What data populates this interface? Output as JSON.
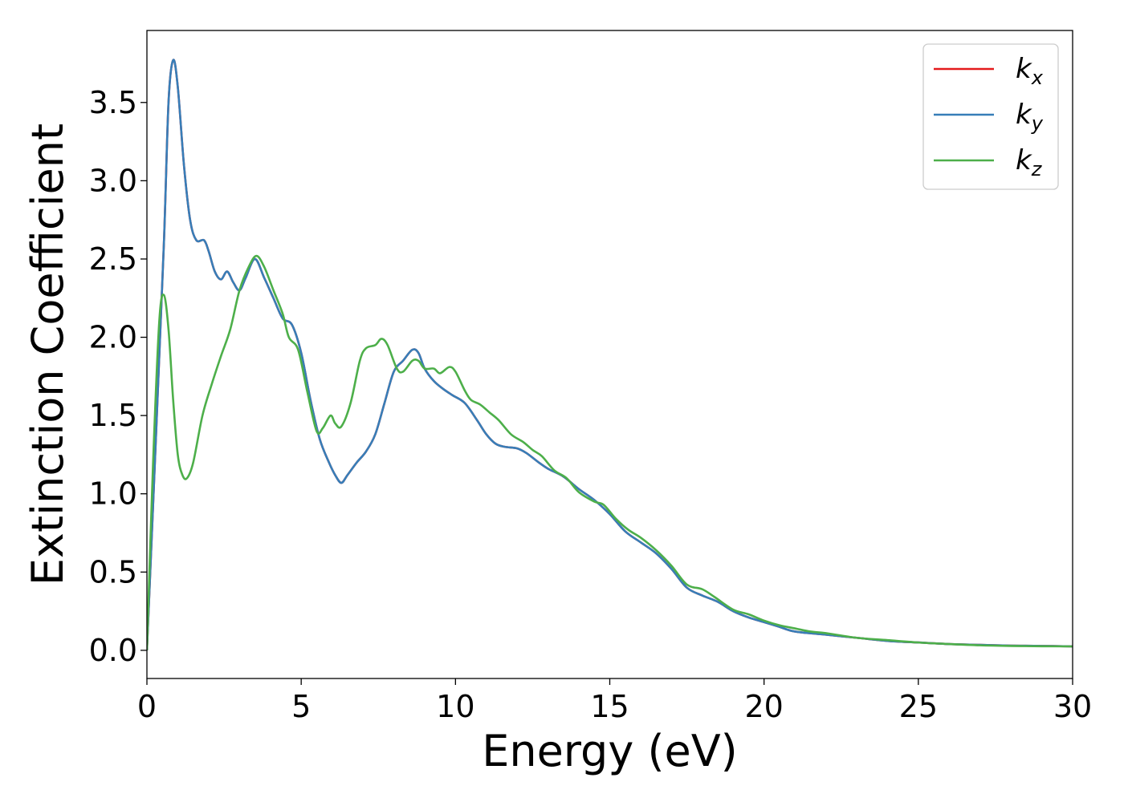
{
  "chart_data": {
    "type": "line",
    "xlabel": "Energy (eV)",
    "ylabel": "Extinction Coefficient",
    "xlim": [
      0,
      30
    ],
    "ylim": [
      -0.18,
      3.96
    ],
    "xticks": [
      "0",
      "5",
      "10",
      "15",
      "20",
      "25",
      "30"
    ],
    "yticks": [
      "0.0",
      "0.5",
      "1.0",
      "1.5",
      "2.0",
      "2.5",
      "3.0",
      "3.5"
    ],
    "grid": false,
    "legend_position": "top-right",
    "series": [
      {
        "name_base": "k",
        "name_sub": "x",
        "color": "#e41a1c",
        "points": [
          [
            0,
            0
          ],
          [
            0.3,
            1.4
          ],
          [
            0.55,
            2.6
          ],
          [
            0.7,
            3.5
          ],
          [
            0.85,
            3.77
          ],
          [
            1.0,
            3.6
          ],
          [
            1.2,
            3.1
          ],
          [
            1.4,
            2.75
          ],
          [
            1.6,
            2.62
          ],
          [
            1.85,
            2.62
          ],
          [
            2.0,
            2.55
          ],
          [
            2.2,
            2.42
          ],
          [
            2.4,
            2.37
          ],
          [
            2.6,
            2.42
          ],
          [
            2.8,
            2.35
          ],
          [
            3.0,
            2.3
          ],
          [
            3.2,
            2.38
          ],
          [
            3.5,
            2.5
          ],
          [
            3.8,
            2.38
          ],
          [
            4.1,
            2.25
          ],
          [
            4.4,
            2.12
          ],
          [
            4.7,
            2.08
          ],
          [
            5.0,
            1.9
          ],
          [
            5.3,
            1.6
          ],
          [
            5.6,
            1.35
          ],
          [
            5.9,
            1.2
          ],
          [
            6.1,
            1.12
          ],
          [
            6.3,
            1.07
          ],
          [
            6.5,
            1.12
          ],
          [
            6.8,
            1.2
          ],
          [
            7.1,
            1.27
          ],
          [
            7.4,
            1.38
          ],
          [
            7.7,
            1.58
          ],
          [
            8.0,
            1.78
          ],
          [
            8.3,
            1.85
          ],
          [
            8.6,
            1.92
          ],
          [
            8.8,
            1.9
          ],
          [
            9.0,
            1.8
          ],
          [
            9.3,
            1.72
          ],
          [
            9.6,
            1.67
          ],
          [
            9.9,
            1.63
          ],
          [
            10.3,
            1.58
          ],
          [
            10.7,
            1.47
          ],
          [
            11.0,
            1.38
          ],
          [
            11.3,
            1.32
          ],
          [
            11.6,
            1.3
          ],
          [
            12.0,
            1.29
          ],
          [
            12.3,
            1.26
          ],
          [
            12.7,
            1.2
          ],
          [
            13.0,
            1.16
          ],
          [
            13.5,
            1.11
          ],
          [
            14.0,
            1.03
          ],
          [
            14.5,
            0.96
          ],
          [
            15.0,
            0.87
          ],
          [
            15.5,
            0.76
          ],
          [
            16.0,
            0.69
          ],
          [
            16.5,
            0.62
          ],
          [
            17.0,
            0.52
          ],
          [
            17.5,
            0.4
          ],
          [
            18.0,
            0.35
          ],
          [
            18.5,
            0.31
          ],
          [
            19.0,
            0.25
          ],
          [
            19.5,
            0.21
          ],
          [
            20.0,
            0.18
          ],
          [
            20.5,
            0.15
          ],
          [
            21.0,
            0.12
          ],
          [
            22.0,
            0.1
          ],
          [
            23.0,
            0.08
          ],
          [
            24.0,
            0.06
          ],
          [
            25.0,
            0.05
          ],
          [
            26.0,
            0.04
          ],
          [
            27.0,
            0.035
          ],
          [
            28.0,
            0.03
          ],
          [
            29.0,
            0.028
          ],
          [
            30.0,
            0.025
          ]
        ]
      },
      {
        "name_base": "k",
        "name_sub": "y",
        "color": "#377eb8",
        "points": [
          [
            0,
            0
          ],
          [
            0.3,
            1.4
          ],
          [
            0.55,
            2.6
          ],
          [
            0.7,
            3.5
          ],
          [
            0.85,
            3.77
          ],
          [
            1.0,
            3.6
          ],
          [
            1.2,
            3.1
          ],
          [
            1.4,
            2.75
          ],
          [
            1.6,
            2.62
          ],
          [
            1.85,
            2.62
          ],
          [
            2.0,
            2.55
          ],
          [
            2.2,
            2.42
          ],
          [
            2.4,
            2.37
          ],
          [
            2.6,
            2.42
          ],
          [
            2.8,
            2.35
          ],
          [
            3.0,
            2.3
          ],
          [
            3.2,
            2.38
          ],
          [
            3.5,
            2.5
          ],
          [
            3.8,
            2.38
          ],
          [
            4.1,
            2.25
          ],
          [
            4.4,
            2.12
          ],
          [
            4.7,
            2.08
          ],
          [
            5.0,
            1.9
          ],
          [
            5.3,
            1.6
          ],
          [
            5.6,
            1.35
          ],
          [
            5.9,
            1.2
          ],
          [
            6.1,
            1.12
          ],
          [
            6.3,
            1.07
          ],
          [
            6.5,
            1.12
          ],
          [
            6.8,
            1.2
          ],
          [
            7.1,
            1.27
          ],
          [
            7.4,
            1.38
          ],
          [
            7.7,
            1.58
          ],
          [
            8.0,
            1.78
          ],
          [
            8.3,
            1.85
          ],
          [
            8.6,
            1.92
          ],
          [
            8.8,
            1.9
          ],
          [
            9.0,
            1.8
          ],
          [
            9.3,
            1.72
          ],
          [
            9.6,
            1.67
          ],
          [
            9.9,
            1.63
          ],
          [
            10.3,
            1.58
          ],
          [
            10.7,
            1.47
          ],
          [
            11.0,
            1.38
          ],
          [
            11.3,
            1.32
          ],
          [
            11.6,
            1.3
          ],
          [
            12.0,
            1.29
          ],
          [
            12.3,
            1.26
          ],
          [
            12.7,
            1.2
          ],
          [
            13.0,
            1.16
          ],
          [
            13.5,
            1.11
          ],
          [
            14.0,
            1.03
          ],
          [
            14.5,
            0.96
          ],
          [
            15.0,
            0.87
          ],
          [
            15.5,
            0.76
          ],
          [
            16.0,
            0.69
          ],
          [
            16.5,
            0.62
          ],
          [
            17.0,
            0.52
          ],
          [
            17.5,
            0.4
          ],
          [
            18.0,
            0.35
          ],
          [
            18.5,
            0.31
          ],
          [
            19.0,
            0.25
          ],
          [
            19.5,
            0.21
          ],
          [
            20.0,
            0.18
          ],
          [
            20.5,
            0.15
          ],
          [
            21.0,
            0.12
          ],
          [
            22.0,
            0.1
          ],
          [
            23.0,
            0.08
          ],
          [
            24.0,
            0.06
          ],
          [
            25.0,
            0.05
          ],
          [
            26.0,
            0.04
          ],
          [
            27.0,
            0.035
          ],
          [
            28.0,
            0.03
          ],
          [
            29.0,
            0.028
          ],
          [
            30.0,
            0.025
          ]
        ]
      },
      {
        "name_base": "k",
        "name_sub": "z",
        "color": "#4daf4a",
        "points": [
          [
            0,
            0
          ],
          [
            0.2,
            1.2
          ],
          [
            0.4,
            2.1
          ],
          [
            0.55,
            2.27
          ],
          [
            0.7,
            2.05
          ],
          [
            0.85,
            1.6
          ],
          [
            1.0,
            1.25
          ],
          [
            1.15,
            1.12
          ],
          [
            1.3,
            1.1
          ],
          [
            1.5,
            1.2
          ],
          [
            1.8,
            1.5
          ],
          [
            2.1,
            1.7
          ],
          [
            2.4,
            1.88
          ],
          [
            2.7,
            2.05
          ],
          [
            3.0,
            2.3
          ],
          [
            3.3,
            2.45
          ],
          [
            3.55,
            2.52
          ],
          [
            3.8,
            2.45
          ],
          [
            4.1,
            2.3
          ],
          [
            4.4,
            2.15
          ],
          [
            4.6,
            2.0
          ],
          [
            4.9,
            1.92
          ],
          [
            5.2,
            1.65
          ],
          [
            5.5,
            1.4
          ],
          [
            5.7,
            1.42
          ],
          [
            5.95,
            1.5
          ],
          [
            6.1,
            1.45
          ],
          [
            6.3,
            1.43
          ],
          [
            6.6,
            1.58
          ],
          [
            6.9,
            1.85
          ],
          [
            7.1,
            1.93
          ],
          [
            7.4,
            1.95
          ],
          [
            7.6,
            1.99
          ],
          [
            7.8,
            1.95
          ],
          [
            8.1,
            1.8
          ],
          [
            8.3,
            1.78
          ],
          [
            8.6,
            1.85
          ],
          [
            8.8,
            1.85
          ],
          [
            9.0,
            1.8
          ],
          [
            9.3,
            1.8
          ],
          [
            9.5,
            1.77
          ],
          [
            9.8,
            1.81
          ],
          [
            10.0,
            1.78
          ],
          [
            10.3,
            1.66
          ],
          [
            10.5,
            1.6
          ],
          [
            10.8,
            1.57
          ],
          [
            11.1,
            1.52
          ],
          [
            11.4,
            1.47
          ],
          [
            11.8,
            1.38
          ],
          [
            12.2,
            1.33
          ],
          [
            12.5,
            1.28
          ],
          [
            12.8,
            1.24
          ],
          [
            13.2,
            1.15
          ],
          [
            13.6,
            1.1
          ],
          [
            14.0,
            1.01
          ],
          [
            14.5,
            0.95
          ],
          [
            14.8,
            0.93
          ],
          [
            15.2,
            0.84
          ],
          [
            15.6,
            0.77
          ],
          [
            16.0,
            0.72
          ],
          [
            16.5,
            0.64
          ],
          [
            17.0,
            0.54
          ],
          [
            17.5,
            0.42
          ],
          [
            18.0,
            0.39
          ],
          [
            18.4,
            0.34
          ],
          [
            19.0,
            0.26
          ],
          [
            19.5,
            0.23
          ],
          [
            20.0,
            0.19
          ],
          [
            20.5,
            0.16
          ],
          [
            21.0,
            0.14
          ],
          [
            21.5,
            0.12
          ],
          [
            22.0,
            0.11
          ],
          [
            23.0,
            0.08
          ],
          [
            24.0,
            0.065
          ],
          [
            25.0,
            0.05
          ],
          [
            26.0,
            0.04
          ],
          [
            27.0,
            0.032
          ],
          [
            28.0,
            0.028
          ],
          [
            29.0,
            0.026
          ],
          [
            30.0,
            0.025
          ]
        ]
      }
    ]
  }
}
